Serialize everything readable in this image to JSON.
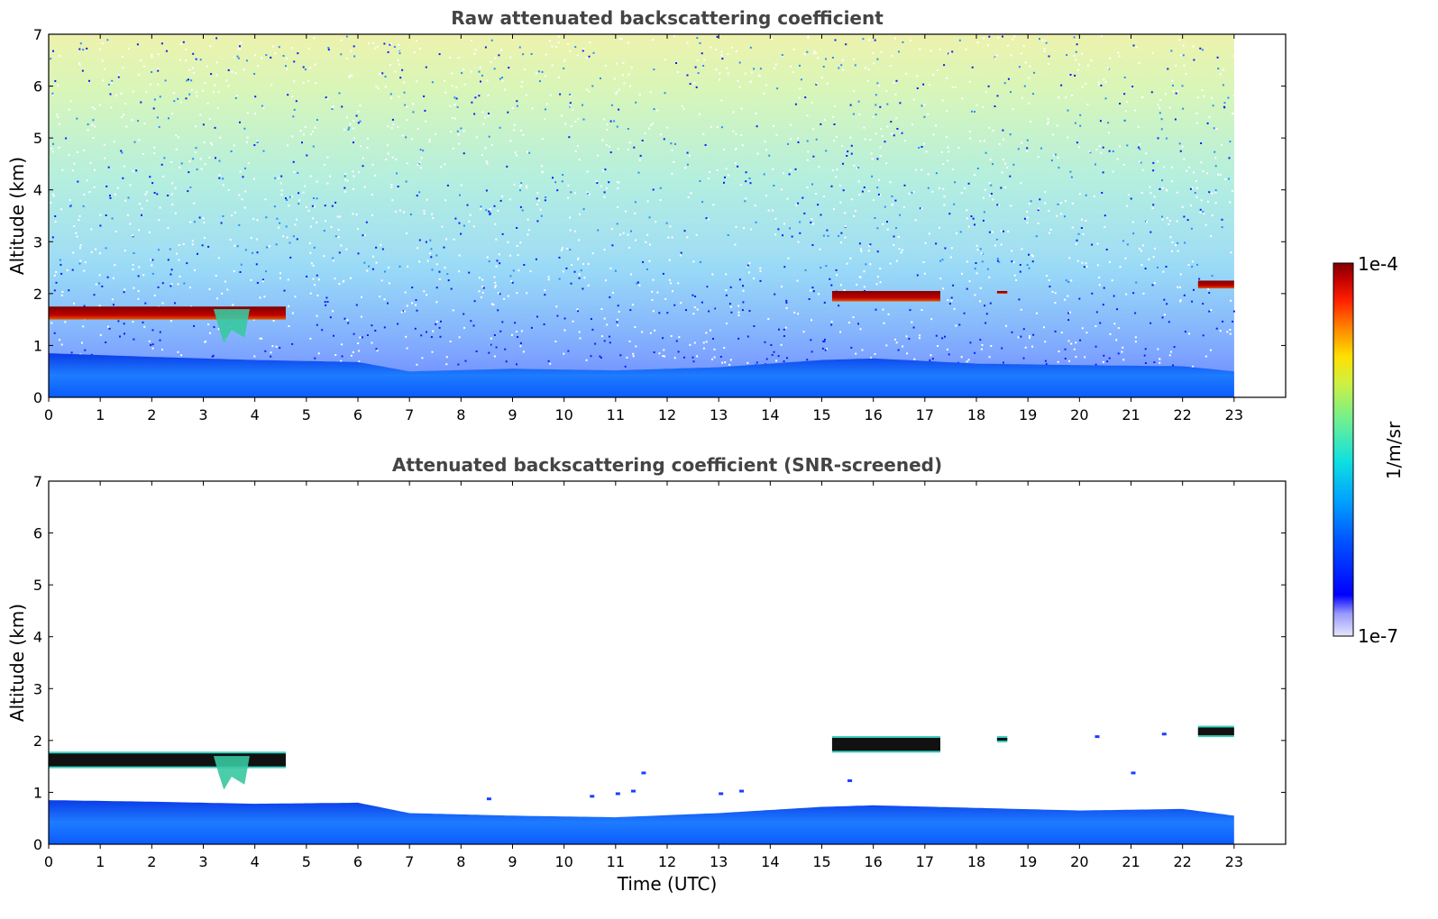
{
  "colors": {
    "jet_high": "#7f0000",
    "jet_low": "#0000ff",
    "pale_low": "#e6e6fa",
    "frame": "#000000",
    "title": "#444444"
  },
  "chart_data": [
    {
      "type": "heatmap",
      "title": "Raw attenuated backscattering coefficient",
      "xlabel": "",
      "ylabel": "Altitude (km)",
      "xlim": [
        0,
        24
      ],
      "ylim": [
        0,
        7
      ],
      "x_ticks": [
        0,
        1,
        2,
        3,
        4,
        5,
        6,
        7,
        8,
        9,
        10,
        11,
        12,
        13,
        14,
        15,
        16,
        17,
        18,
        19,
        20,
        21,
        22,
        23
      ],
      "y_ticks": [
        0,
        1,
        2,
        3,
        4,
        5,
        6,
        7
      ],
      "data_extent_x": [
        0,
        23
      ],
      "boundary_layer_top_km": [
        [
          0,
          0.85
        ],
        [
          2,
          0.78
        ],
        [
          4,
          0.72
        ],
        [
          6,
          0.68
        ],
        [
          7,
          0.5
        ],
        [
          9,
          0.55
        ],
        [
          11,
          0.52
        ],
        [
          13,
          0.58
        ],
        [
          15,
          0.72
        ],
        [
          16,
          0.75
        ],
        [
          18,
          0.65
        ],
        [
          20,
          0.62
        ],
        [
          22,
          0.6
        ],
        [
          23,
          0.5
        ]
      ],
      "cloud_layers": [
        {
          "start": 0,
          "end": 4.6,
          "base_km": 1.5,
          "top_km": 1.75
        },
        {
          "start": 15.2,
          "end": 17.3,
          "base_km": 1.85,
          "top_km": 2.05
        },
        {
          "start": 18.4,
          "end": 18.6,
          "base_km": 2.0,
          "top_km": 2.05
        },
        {
          "start": 22.3,
          "end": 23.0,
          "base_km": 2.1,
          "top_km": 2.25
        }
      ]
    },
    {
      "type": "heatmap",
      "title": "Attenuated backscattering coefficient (SNR-screened)",
      "xlabel": "Time (UTC)",
      "ylabel": "Altitude (km)",
      "xlim": [
        0,
        24
      ],
      "ylim": [
        0,
        7
      ],
      "x_ticks": [
        0,
        1,
        2,
        3,
        4,
        5,
        6,
        7,
        8,
        9,
        10,
        11,
        12,
        13,
        14,
        15,
        16,
        17,
        18,
        19,
        20,
        21,
        22,
        23
      ],
      "y_ticks": [
        0,
        1,
        2,
        3,
        4,
        5,
        6,
        7
      ],
      "data_extent_x": [
        0,
        23
      ],
      "boundary_layer_top_km": [
        [
          0,
          0.85
        ],
        [
          2,
          0.82
        ],
        [
          4,
          0.78
        ],
        [
          6,
          0.8
        ],
        [
          7,
          0.6
        ],
        [
          9,
          0.55
        ],
        [
          11,
          0.52
        ],
        [
          13,
          0.6
        ],
        [
          15,
          0.72
        ],
        [
          16,
          0.75
        ],
        [
          18,
          0.7
        ],
        [
          20,
          0.65
        ],
        [
          22,
          0.68
        ],
        [
          23,
          0.55
        ]
      ],
      "cloud_layers": [
        {
          "start": 0,
          "end": 4.6,
          "base_km": 1.5,
          "top_km": 1.75
        },
        {
          "start": 15.2,
          "end": 17.3,
          "base_km": 1.8,
          "top_km": 2.05
        },
        {
          "start": 18.4,
          "end": 18.6,
          "base_km": 2.0,
          "top_km": 2.05
        },
        {
          "start": 22.3,
          "end": 23.0,
          "base_km": 2.1,
          "top_km": 2.25
        }
      ]
    }
  ],
  "colorbar": {
    "max_label": "1e-4",
    "min_label": "1e-7",
    "unit_label": "1/m/sr"
  }
}
